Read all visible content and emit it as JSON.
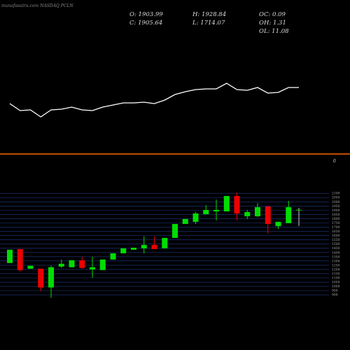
{
  "chart_data": [
    {
      "type": "line",
      "title": "munafasutra.com NASDAQ PCLN",
      "color": "#ffffff",
      "ylim": [
        0,
        100
      ],
      "values": [
        52,
        42,
        43,
        33,
        43,
        44,
        47,
        43,
        42,
        47,
        50,
        53,
        53,
        54,
        52,
        57,
        65,
        69,
        72,
        73,
        73,
        81,
        72,
        71,
        75,
        67,
        68,
        75,
        75
      ]
    },
    {
      "type": "hline",
      "value": 0,
      "color": "#ff6600"
    },
    {
      "type": "candlestick",
      "up_color": "#00dd00",
      "down_color": "#ee0000",
      "grid_color": "#1f3a8a",
      "annotations": [
        "O: 1903.99",
        "H: 1928.84",
        "OC: 0.09",
        "C: 1905.64",
        "L: 1714.07",
        "OH: 1.31",
        "OL: 11.08"
      ],
      "ylim": [
        860,
        2110
      ],
      "yticks": [
        900,
        950,
        1000,
        1050,
        1100,
        1150,
        1200,
        1250,
        1300,
        1350,
        1400,
        1450,
        1500,
        1550,
        1600,
        1650,
        1700,
        1750,
        1800,
        1850,
        1900,
        1950,
        2000,
        2050,
        2100
      ],
      "open": [
        1276,
        1441,
        1209,
        1209,
        987,
        1234,
        1226,
        1309,
        1201,
        1193,
        1317,
        1391,
        1433,
        1450,
        1490,
        1450,
        1573,
        1738,
        1763,
        1854,
        1887,
        1887,
        2069,
        1829,
        1829,
        1945,
        1713,
        1747,
        1903.99
      ],
      "close": [
        1433,
        1193,
        1243,
        987,
        1226,
        1267,
        1309,
        1218,
        1226,
        1317,
        1391,
        1450,
        1457,
        1490,
        1441,
        1573,
        1738,
        1796,
        1862,
        1904,
        1904,
        2069,
        1862,
        1879,
        1937,
        1738,
        1763,
        1937,
        1905.64
      ],
      "high": [
        1433,
        1441,
        1243,
        1209,
        1243,
        1317,
        1309,
        1350,
        1350,
        1317,
        1391,
        1450,
        1457,
        1590,
        1590,
        1573,
        1738,
        1796,
        1879,
        1961,
        2027,
        2069,
        2110,
        1904,
        1986,
        1945,
        1763,
        2011,
        1928.84
      ],
      "low": [
        1276,
        1177,
        1209,
        945,
        863,
        1218,
        1226,
        1209,
        1102,
        1193,
        1317,
        1391,
        1433,
        1391,
        1441,
        1450,
        1573,
        1738,
        1738,
        1854,
        1780,
        1887,
        1780,
        1796,
        1821,
        1623,
        1680,
        1747,
        1714.07
      ]
    }
  ]
}
